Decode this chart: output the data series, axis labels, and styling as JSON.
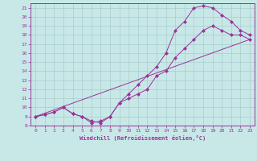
{
  "xlabel": "Windchill (Refroidissement éolien,°C)",
  "bg_color": "#c8e8e8",
  "line_color": "#993399",
  "grid_color": "#aacccc",
  "xlim": [
    -0.5,
    23.5
  ],
  "ylim": [
    8,
    21.5
  ],
  "xticks": [
    0,
    1,
    2,
    3,
    4,
    5,
    6,
    7,
    8,
    9,
    10,
    11,
    12,
    13,
    14,
    15,
    16,
    17,
    18,
    19,
    20,
    21,
    22,
    23
  ],
  "yticks": [
    8,
    9,
    10,
    11,
    12,
    13,
    14,
    15,
    16,
    17,
    18,
    19,
    20,
    21
  ],
  "line1_x": [
    0,
    1,
    2,
    3,
    4,
    5,
    6,
    7,
    8,
    9,
    10,
    11,
    12,
    13,
    14,
    15,
    16,
    17,
    18,
    19,
    20,
    21,
    22,
    23
  ],
  "line1_y": [
    9,
    9.2,
    9.5,
    10,
    9.3,
    9,
    8.3,
    8.5,
    9,
    10.5,
    11,
    11.5,
    12,
    13.5,
    14,
    15.5,
    16.5,
    17.5,
    18.5,
    19,
    18.5,
    18,
    18,
    17.5
  ],
  "line2_x": [
    0,
    1,
    2,
    3,
    4,
    5,
    6,
    7,
    8,
    9,
    10,
    11,
    12,
    13,
    14,
    15,
    16,
    17,
    18,
    19,
    20,
    21,
    22,
    23
  ],
  "line2_y": [
    9,
    9.2,
    9.5,
    10,
    9.3,
    9,
    8.5,
    8.3,
    9,
    10.5,
    11.5,
    12.5,
    13.5,
    14.5,
    16,
    18.5,
    19.5,
    21,
    21.2,
    21,
    20.2,
    19.5,
    18.5,
    18
  ],
  "line3_x": [
    0,
    23
  ],
  "line3_y": [
    9,
    17.5
  ],
  "markersize": 2.5
}
